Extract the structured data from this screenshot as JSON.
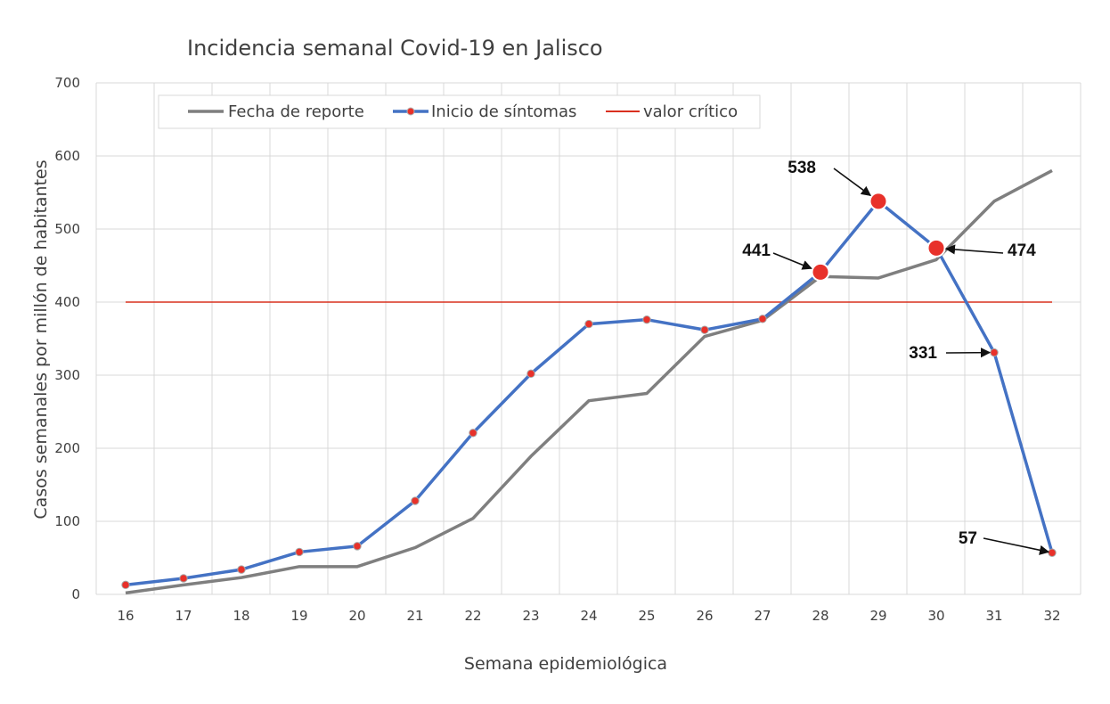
{
  "chart_data": {
    "type": "line",
    "title": "Incidencia semanal Covid-19 en Jalisco",
    "xlabel": "Semana epidemiológica",
    "ylabel": "Casos semanales por millón de habitantes",
    "x": [
      16,
      17,
      18,
      19,
      20,
      21,
      22,
      23,
      24,
      25,
      26,
      27,
      28,
      29,
      30,
      31,
      32
    ],
    "ylim": [
      0,
      700
    ],
    "yticks": [
      0,
      100,
      200,
      300,
      400,
      500,
      600,
      700
    ],
    "grid": true,
    "legend_position": "top-left",
    "series": [
      {
        "name": "Fecha de reporte",
        "color": "#7f7f7f",
        "values": [
          2,
          13,
          23,
          38,
          38,
          64,
          104,
          189,
          265,
          275,
          353,
          375,
          435,
          433,
          458,
          538,
          580
        ]
      },
      {
        "name": "Inicio de síntomas",
        "color": "#4472c4",
        "marker_color": "#e8312a",
        "values": [
          13,
          22,
          34,
          58,
          66,
          128,
          221,
          302,
          370,
          376,
          362,
          377,
          441,
          538,
          474,
          331,
          57
        ]
      }
    ],
    "reference_line": {
      "name": "valor crítico",
      "value": 400,
      "color": "#d9301f"
    },
    "annotations": [
      {
        "text": "441",
        "week": 28,
        "value": 441
      },
      {
        "text": "538",
        "week": 29,
        "value": 538
      },
      {
        "text": "474",
        "week": 30,
        "value": 474
      },
      {
        "text": "331",
        "week": 31,
        "value": 331
      },
      {
        "text": "57",
        "week": 32,
        "value": 57
      }
    ],
    "highlighted_weeks": [
      28,
      29,
      30
    ]
  }
}
